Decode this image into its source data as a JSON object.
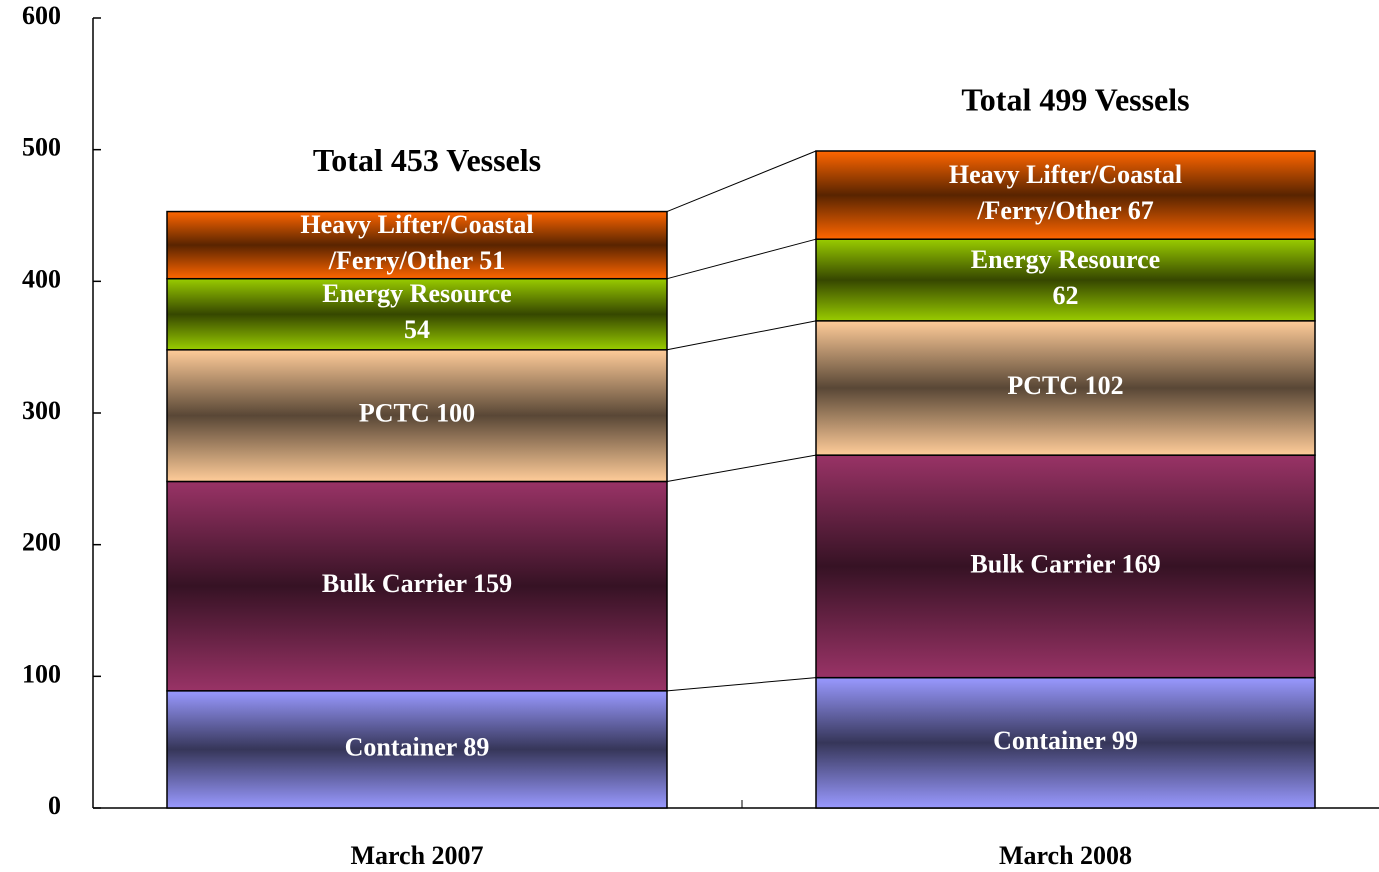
{
  "chart_data": {
    "type": "stacked_bar",
    "categories": [
      "March 2007",
      "March 2008"
    ],
    "series": [
      {
        "color": "#9999ff",
        "values": [
          89,
          99
        ],
        "value_labels": [
          [
            "Container 89"
          ],
          [
            "Container 99"
          ]
        ]
      },
      {
        "color": "#993366",
        "values": [
          159,
          169
        ],
        "value_labels": [
          [
            "Bulk Carrier 159"
          ],
          [
            "Bulk Carrier 169"
          ]
        ]
      },
      {
        "color": "#ffcc99",
        "values": [
          100,
          102
        ],
        "value_labels": [
          [
            "PCTC 100"
          ],
          [
            "PCTC 102"
          ]
        ]
      },
      {
        "color": "#99cc00",
        "values": [
          54,
          62
        ],
        "value_labels": [
          [
            "Energy Resource",
            "54"
          ],
          [
            "Energy Resource",
            "62"
          ]
        ]
      },
      {
        "color": "#ff6600",
        "values": [
          51,
          67
        ],
        "value_labels": [
          [
            "Heavy Lifter/Coastal",
            "/Ferry/Other   51"
          ],
          [
            "Heavy Lifter/Coastal",
            "/Ferry/Other   67"
          ]
        ]
      }
    ],
    "annotations": [
      "Total  453 Vessels",
      "Total 499 Vessels"
    ],
    "ylim": [
      0,
      600
    ],
    "yticks": [
      0,
      100,
      200,
      300,
      400,
      500,
      600
    ],
    "grid": false
  }
}
